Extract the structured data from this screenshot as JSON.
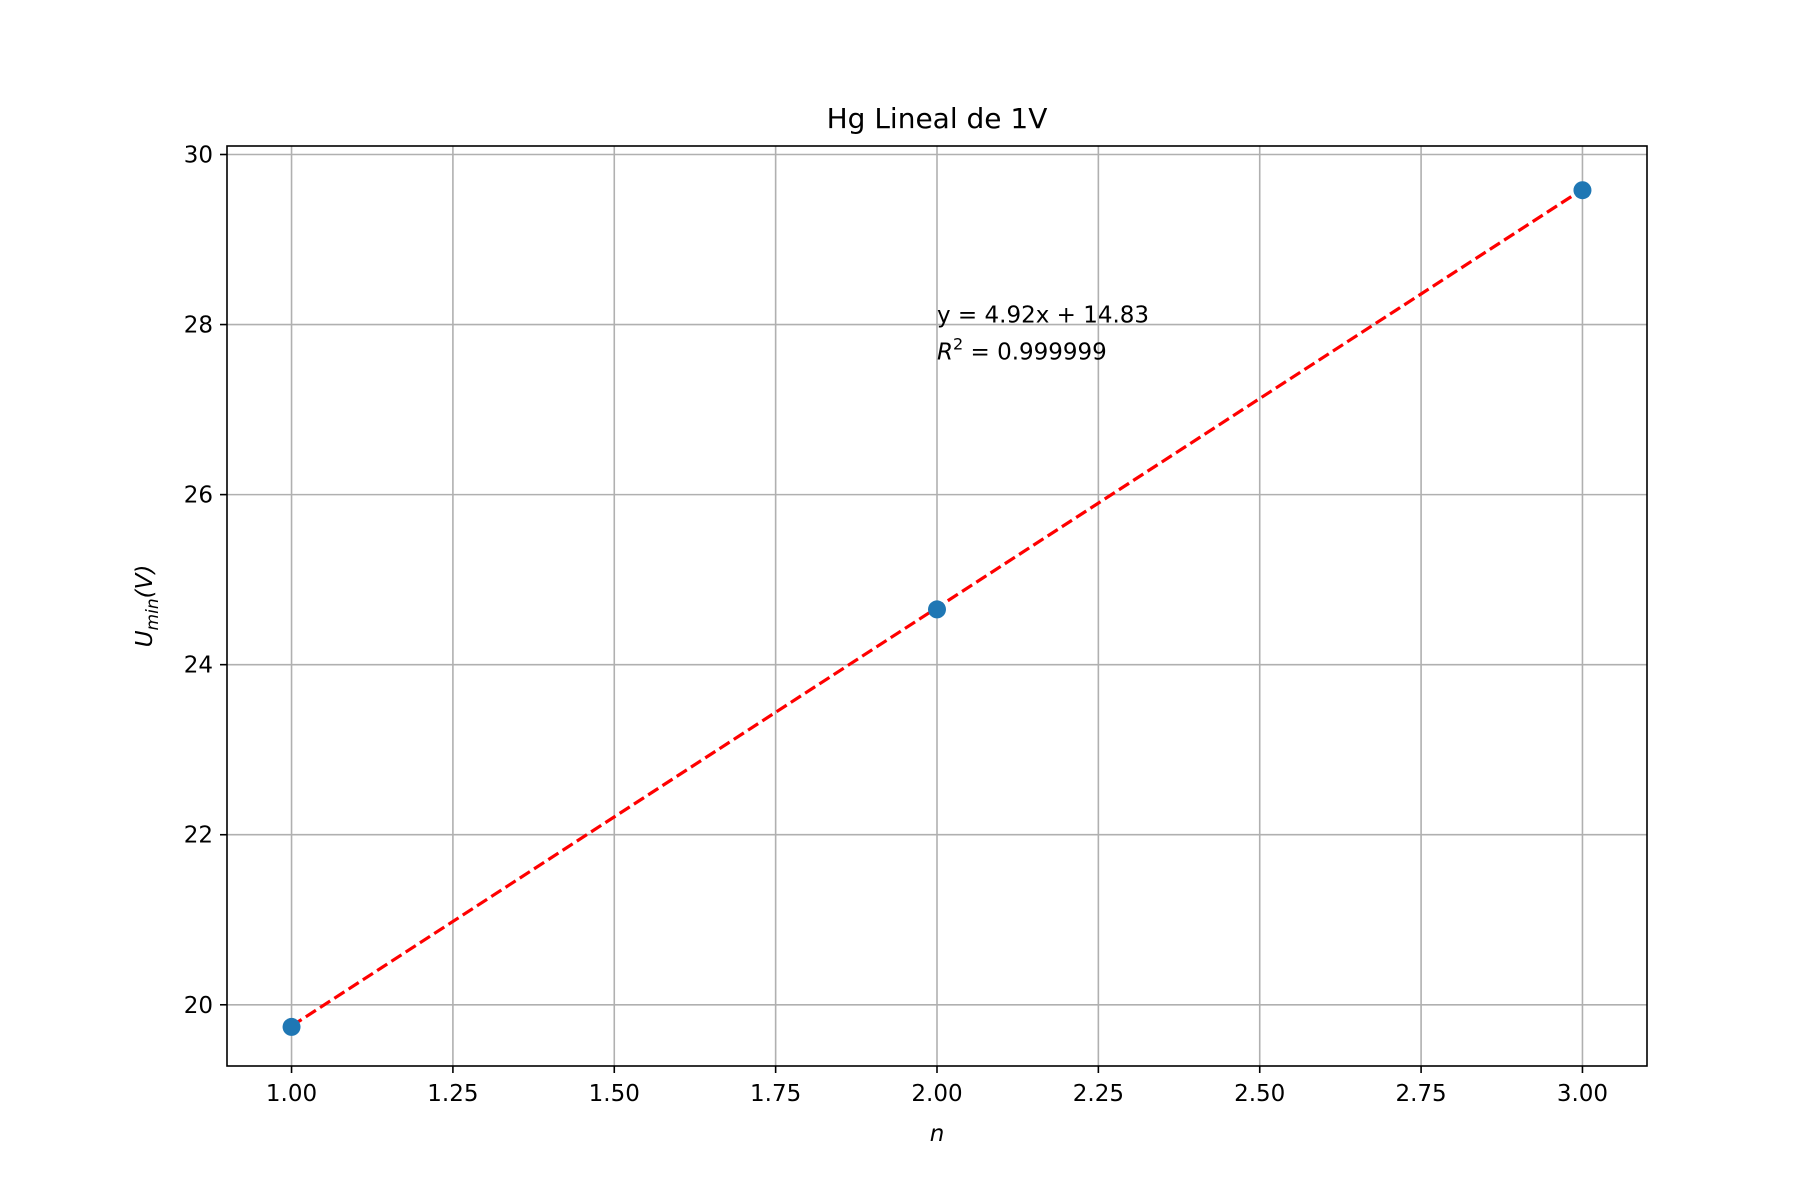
{
  "chart_data": {
    "type": "scatter",
    "title": "Hg Lineal de 1V",
    "xlabel": "n",
    "ylabel": {
      "base": "U",
      "sub": "min",
      "suffix": "(V)"
    },
    "xlim": [
      0.9,
      3.1
    ],
    "ylim": [
      19.28,
      30.1
    ],
    "x_ticks": [
      1.0,
      1.25,
      1.5,
      1.75,
      2.0,
      2.25,
      2.5,
      2.75,
      3.0
    ],
    "x_tick_labels": [
      "1.00",
      "1.25",
      "1.50",
      "1.75",
      "2.00",
      "2.25",
      "2.50",
      "2.75",
      "3.00"
    ],
    "y_ticks": [
      20,
      22,
      24,
      26,
      28,
      30
    ],
    "y_tick_labels": [
      "20",
      "22",
      "24",
      "26",
      "28",
      "30"
    ],
    "grid": true,
    "series": [
      {
        "kind": "scatter",
        "x": [
          1.0,
          2.0,
          3.0
        ],
        "y": [
          19.74,
          24.65,
          29.58
        ],
        "color": "#1f77b4"
      },
      {
        "kind": "fit-line",
        "slope": 4.92,
        "intercept": 14.83,
        "x": [
          1.0,
          3.0
        ],
        "style": "dashed",
        "color": "#ff0000"
      }
    ],
    "annotation": {
      "equation": "y = 4.92x + 14.83",
      "r2_label": "R",
      "r2_sup": "2",
      "r2_value": " = 0.999999",
      "anchor": [
        2.0,
        28.0
      ]
    }
  }
}
